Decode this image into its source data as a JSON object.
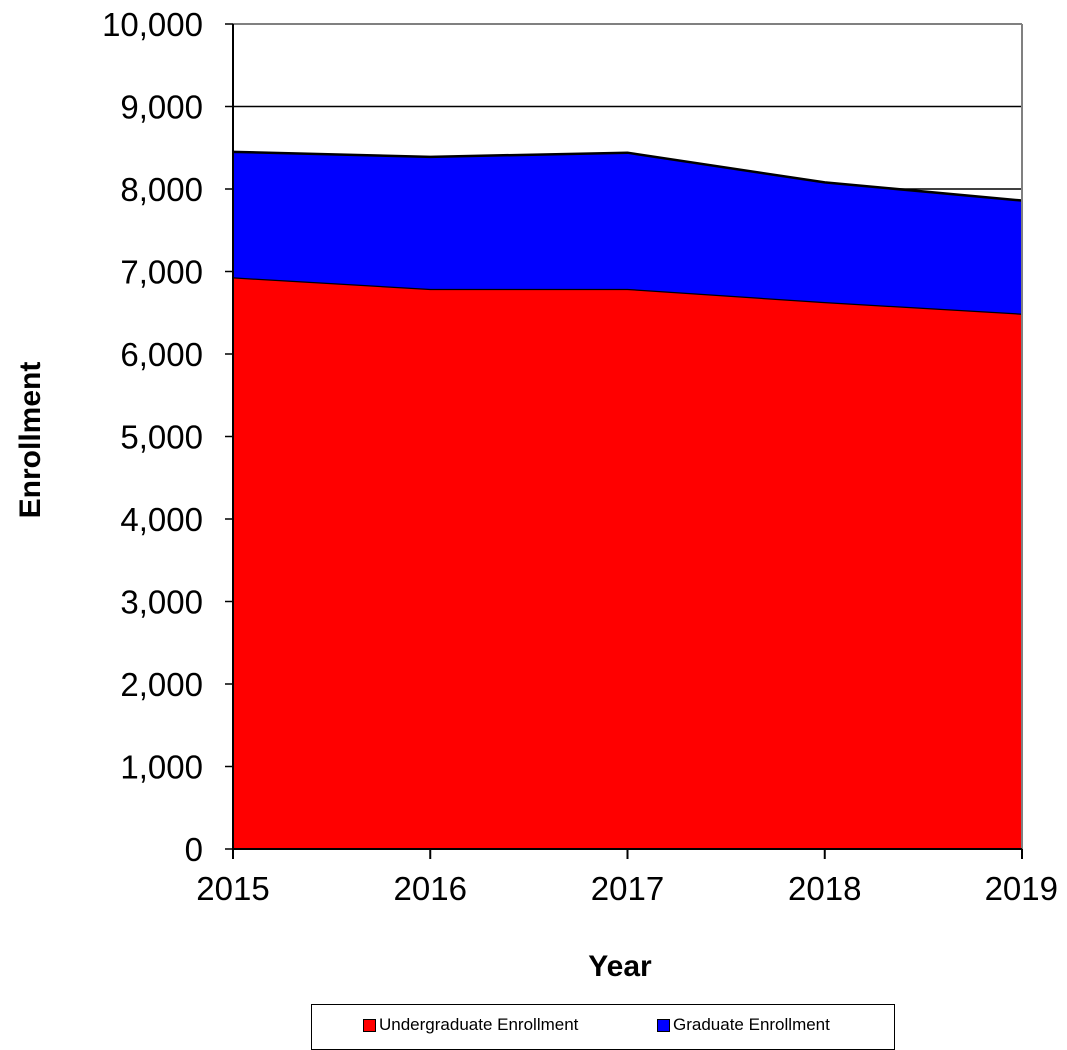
{
  "chart_data": {
    "type": "area",
    "stacked": true,
    "x": [
      2015,
      2016,
      2017,
      2018,
      2019
    ],
    "series": [
      {
        "name": "Undergraduate Enrollment",
        "values": [
          6930,
          6790,
          6790,
          6630,
          6490
        ],
        "color": "#ff0000"
      },
      {
        "name": "Graduate Enrollment",
        "values": [
          1520,
          1600,
          1650,
          1450,
          1370
        ],
        "color": "#0000ff"
      }
    ],
    "xlabel": "Year",
    "ylabel": "Enrollment",
    "ylim": [
      0,
      10000
    ],
    "yticks": [
      "0",
      "1,000",
      "2,000",
      "3,000",
      "4,000",
      "5,000",
      "6,000",
      "7,000",
      "8,000",
      "9,000",
      "10,000"
    ],
    "xticks": [
      "2015",
      "2016",
      "2017",
      "2018",
      "2019"
    ],
    "grid": true,
    "legend_position": "bottom"
  }
}
